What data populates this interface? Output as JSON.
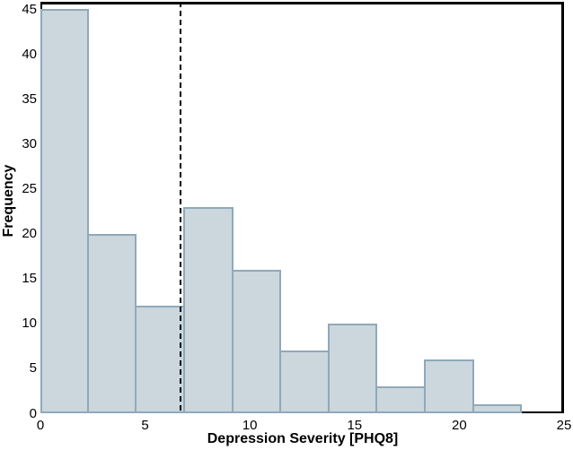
{
  "chart_data": {
    "type": "bar",
    "subtype": "histogram",
    "xlabel": "Depression Severity [PHQ8]",
    "ylabel": "Frequency",
    "bin_edges": [
      0,
      2.3,
      4.6,
      6.9,
      9.2,
      11.5,
      13.8,
      16.1,
      18.4,
      20.7,
      23
    ],
    "frequencies": [
      45,
      20,
      12,
      23,
      16,
      7,
      10,
      3,
      6,
      1
    ],
    "x_ticks": [
      0,
      5,
      10,
      15,
      20,
      25
    ],
    "y_ticks": [
      0,
      5,
      10,
      15,
      20,
      25,
      30,
      35,
      40,
      45
    ],
    "xlim": [
      0,
      25
    ],
    "ylim": [
      0,
      45.8
    ],
    "grid": false,
    "legend": null,
    "annotation_line": {
      "x": 6.7,
      "style": "dashed",
      "color": "#000000"
    },
    "colors": {
      "bar_fill": "#cbd6dd",
      "bar_stroke": "#8fa9ba",
      "frame": "#000000",
      "background": "#ffffff"
    }
  }
}
